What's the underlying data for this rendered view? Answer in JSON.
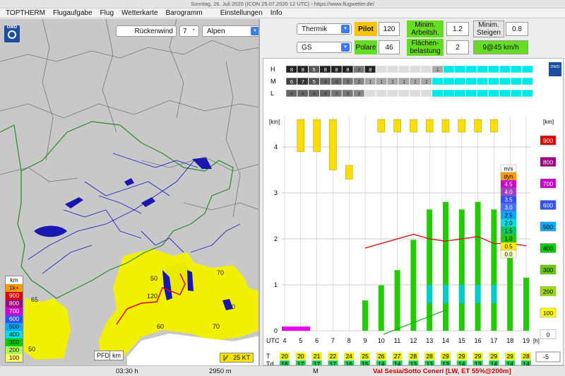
{
  "window": {
    "title": "Sonntag, 26. Juli 2020 (ICON 25.07.2020 12 UTC) - https://www.flugwetter.de/"
  },
  "menu": [
    "TOPTHERM",
    "Flugaufgabe",
    "Flug",
    "Wetterkarte",
    "Barogramm",
    "Einstellungen",
    "Info"
  ],
  "map": {
    "wind_label": "Rückenwind",
    "wind_value": "7",
    "region": "Alpen",
    "logo": "DWD",
    "pfd_label": "PFD",
    "km_label": "km",
    "kt_label": "25 KT",
    "legend": [
      {
        "label": "km",
        "color": "#ffffff"
      },
      {
        "label": "1k+",
        "color": "#ff9900"
      },
      {
        "label": "900",
        "color": "#dd0000"
      },
      {
        "label": "800",
        "color": "#a00080"
      },
      {
        "label": "700",
        "color": "#cc00cc"
      },
      {
        "label": "600",
        "color": "#3050ff"
      },
      {
        "label": "500",
        "color": "#00aaff"
      },
      {
        "label": "400",
        "color": "#00dddd"
      },
      {
        "label": "300",
        "color": "#00cc00"
      },
      {
        "label": "200",
        "color": "#aaff55"
      },
      {
        "label": "100",
        "color": "#ffff66"
      }
    ],
    "contour_labels": [
      "50",
      "120",
      "70",
      "60",
      "70",
      "70",
      "50",
      "65"
    ]
  },
  "controls": {
    "mode": "Thermik",
    "glider": "GS",
    "pilot_label": "Pilot",
    "pilot_value": "120",
    "polare_label": "Polare",
    "polare_value": "46",
    "min_height_label": "Minim. Arbeitsh.",
    "min_height_value": "1.2",
    "wing_load_label": "Flächen-belastung",
    "wing_load_value": "2",
    "min_climb_label": "Minim. Steigen",
    "min_climb_value": "0.8",
    "result": "9@45 km/h"
  },
  "chart": {
    "logo": "DWD",
    "cloud_layers": [
      {
        "label": "H",
        "values": [
          "8",
          "8",
          "5",
          "8",
          "8",
          "8",
          "3",
          "8",
          "",
          "",
          "",
          "",
          "",
          "1"
        ]
      },
      {
        "label": "M",
        "values": [
          "6",
          "7",
          "5",
          "4",
          "4",
          "3",
          "2",
          "1",
          "1",
          "1",
          "1",
          "1",
          "1",
          ""
        ]
      },
      {
        "label": "L",
        "values": [
          "4",
          "4",
          "4",
          "4",
          "3",
          "3",
          "2",
          "",
          "",
          "",
          "",
          "",
          "",
          ""
        ]
      }
    ],
    "left_km_label": "[km]",
    "right_km_label": "[km]",
    "left_axis": [
      "4",
      "3",
      "2",
      "1",
      "0"
    ],
    "right_axis": [
      {
        "label": "900",
        "color": "#dd0000"
      },
      {
        "label": "800",
        "color": "#a00080"
      },
      {
        "label": "700",
        "color": "#cc00cc"
      },
      {
        "label": "600",
        "color": "#3050ff"
      },
      {
        "label": "500",
        "color": "#00aaff"
      },
      {
        "label": "400",
        "color": "#00cc00"
      },
      {
        "label": "300",
        "color": "#66cc00"
      },
      {
        "label": "200",
        "color": "#99dd00"
      },
      {
        "label": "100",
        "color": "#ffff00"
      },
      {
        "label": "0",
        "color": "#ffffff"
      }
    ],
    "x_label": "UTC",
    "x_ticks": [
      "4",
      "5",
      "6",
      "7",
      "8",
      "9",
      "10",
      "11",
      "12",
      "13",
      "14",
      "15",
      "16",
      "17",
      "18",
      "19"
    ],
    "x_unit": "[h]",
    "ms_legend": [
      {
        "label": "m/s",
        "color": "#ffffff"
      },
      {
        "label": "dyn",
        "color": "#ff9900"
      },
      {
        "label": "4.5",
        "color": "#cc00cc"
      },
      {
        "label": "4.0",
        "color": "#a040c0"
      },
      {
        "label": "3.5",
        "color": "#3050ff"
      },
      {
        "label": "3.0",
        "color": "#4070ff"
      },
      {
        "label": "2.5",
        "color": "#00aaff"
      },
      {
        "label": "2.0",
        "color": "#00dddd"
      },
      {
        "label": "1.5",
        "color": "#00cc66"
      },
      {
        "label": "1.0",
        "color": "#22cc00"
      },
      {
        "label": "0.5",
        "color": "#ffee00"
      },
      {
        "label": "0.0",
        "color": "#ffffcc"
      }
    ],
    "T_label": "T",
    "Td_label": "Td",
    "T_values": [
      "20",
      "20",
      "21",
      "22",
      "24",
      "25",
      "26",
      "27",
      "28",
      "28",
      "29",
      "29",
      "29",
      "29",
      "29",
      "28"
    ],
    "Td_values": [
      "16",
      "17",
      "17",
      "17",
      "16",
      "15",
      "14",
      "14",
      "13",
      "13",
      "13",
      "14",
      "13",
      "14",
      "14",
      "14"
    ],
    "offset_value": "-5"
  },
  "status": {
    "time": "03:30 h",
    "altitude": "2950 m",
    "mode": "M",
    "location": "Val Sesia/Sotto Ceneri [LW, ET  55%@200m]"
  }
}
